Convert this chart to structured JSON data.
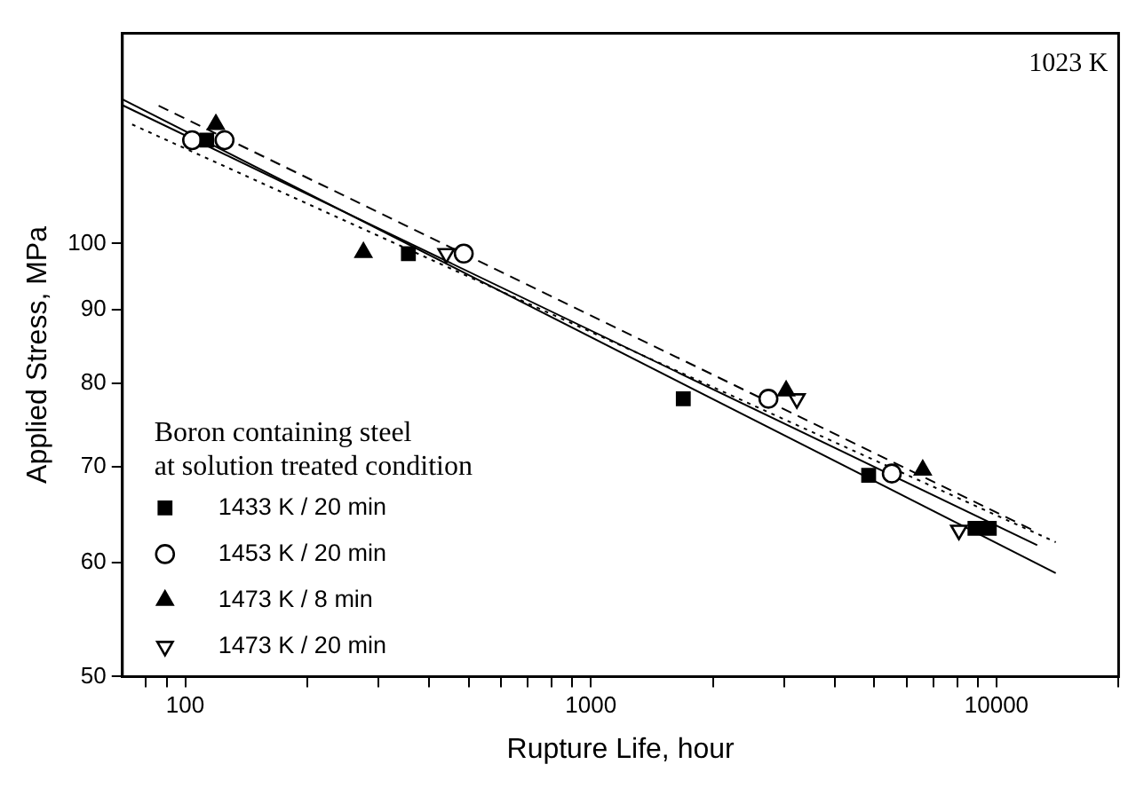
{
  "chart_data": {
    "type": "scatter",
    "xlabel": "Rupture Life, hour",
    "ylabel": "Applied Stress, MPa",
    "legend_title": "Boron containing steel\nat solution treated condition",
    "legend": "bottom left",
    "log": "xy",
    "grid": false,
    "annotations": [
      "1023 K"
    ],
    "xlim": [
      70,
      20000
    ],
    "ylim": [
      50,
      140
    ],
    "xticks": [
      {
        "value": 80,
        "label": null
      },
      {
        "value": 90,
        "label": null
      },
      100,
      {
        "value": 200,
        "label": null
      },
      {
        "value": 300,
        "label": null
      },
      {
        "value": 400,
        "label": null
      },
      {
        "value": 500,
        "label": null
      },
      {
        "value": 600,
        "label": null
      },
      {
        "value": 700,
        "label": null
      },
      {
        "value": 800,
        "label": null
      },
      {
        "value": 900,
        "label": null
      },
      1000,
      {
        "value": 2000,
        "label": null
      },
      {
        "value": 3000,
        "label": null
      },
      {
        "value": 4000,
        "label": null
      },
      {
        "value": 5000,
        "label": null
      },
      {
        "value": 6000,
        "label": null
      },
      {
        "value": 7000,
        "label": null
      },
      {
        "value": 8000,
        "label": null
      },
      {
        "value": 9000,
        "label": null
      },
      10000,
      {
        "value": 20000,
        "label": null
      }
    ],
    "yticks": [
      50,
      60,
      70,
      80,
      90,
      100
    ],
    "series": [
      {
        "name": "1433 K / 20 min",
        "color": "#000000",
        "marker": "square",
        "x": [
          113,
          355,
          1690,
          4840,
          8850,
          9600
        ],
        "values": [
          118,
          98.4,
          78,
          69,
          63.4,
          63.4
        ]
      },
      {
        "name": "1453 K / 20 min",
        "color": "#000000",
        "marker": "circle-open",
        "x": [
          104,
          125,
          486,
          2740,
          5520
        ],
        "values": [
          118,
          118,
          98.4,
          78,
          69.2
        ]
      },
      {
        "name": "1473 K / 8 min",
        "color": "#000000",
        "marker": "triangle",
        "x": [
          119,
          275,
          3030,
          6580
        ],
        "values": [
          121,
          98.6,
          79,
          69.6
        ]
      },
      {
        "name": "1473 K / 20 min",
        "color": "#000000",
        "marker": "triangle-down-open",
        "x": [
          440,
          3220,
          8080
        ],
        "values": [
          98.4,
          78,
          63.2
        ]
      },
      {
        "type": "line",
        "color": "#000000",
        "line_style": "solid",
        "x": [
          70,
          14000
        ],
        "values": [
          126,
          59
        ]
      },
      {
        "type": "line",
        "color": "#000000",
        "line_style": "solid",
        "x": [
          70,
          12600
        ],
        "values": [
          124.8,
          61.7
        ]
      },
      {
        "type": "line",
        "color": "#000000",
        "line_style": "dashed",
        "x": [
          86,
          12600
        ],
        "values": [
          124.7,
          63
        ]
      },
      {
        "type": "line",
        "color": "#000000",
        "line_style": "dotted",
        "x": [
          74,
          14000
        ],
        "values": [
          121,
          62
        ]
      }
    ]
  }
}
